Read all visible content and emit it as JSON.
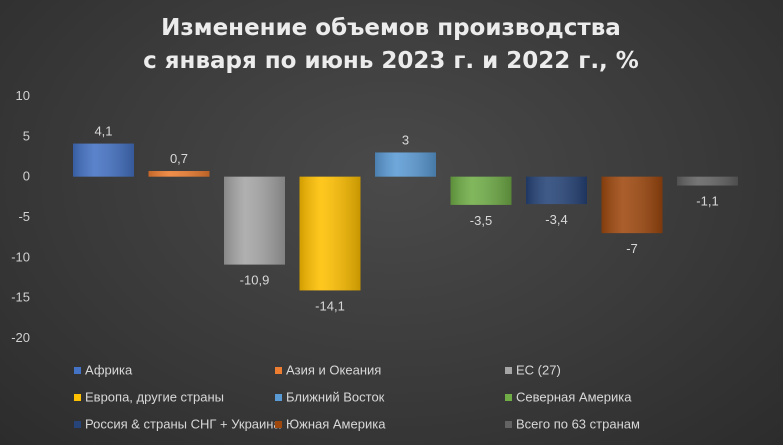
{
  "chart_data": {
    "type": "bar",
    "title_lines": [
      "Изменение объемов производства",
      "с января по июнь 2023 г. и 2022 г., %"
    ],
    "xlabel": "",
    "ylabel": "",
    "ylim": [
      -20,
      10
    ],
    "yticks": [
      "10",
      "5",
      "0",
      "-5",
      "-10",
      "-15",
      "-20"
    ],
    "ytick_values": [
      10,
      5,
      0,
      -5,
      -10,
      -15,
      -20
    ],
    "grid": false,
    "legend_position": "bottom",
    "series": [
      {
        "name": "Африка",
        "value": 4.1,
        "label": "4,1",
        "color": "#4472c4"
      },
      {
        "name": "Азия и Океания",
        "value": 0.7,
        "label": "0,7",
        "color": "#ed7d31"
      },
      {
        "name": "ЕС (27)",
        "value": -10.9,
        "label": "-10,9",
        "color": "#a5a5a5"
      },
      {
        "name": "Европа, другие страны",
        "value": -14.1,
        "label": "-14,1",
        "color": "#ffc000"
      },
      {
        "name": "Ближний Восток",
        "value": 3,
        "label": "3",
        "color": "#5b9bd5"
      },
      {
        "name": "Северная Америка",
        "value": -3.5,
        "label": "-3,5",
        "color": "#70ad47"
      },
      {
        "name": "Россия & страны СНГ + Украина",
        "value": -3.4,
        "label": "-3,4",
        "color": "#264478"
      },
      {
        "name": "Южная Америка",
        "value": -7,
        "label": "-7",
        "color": "#9e480e"
      },
      {
        "name": "Всего по 63 странам",
        "value": -1.1,
        "label": "-1,1",
        "color": "#636363"
      }
    ]
  }
}
